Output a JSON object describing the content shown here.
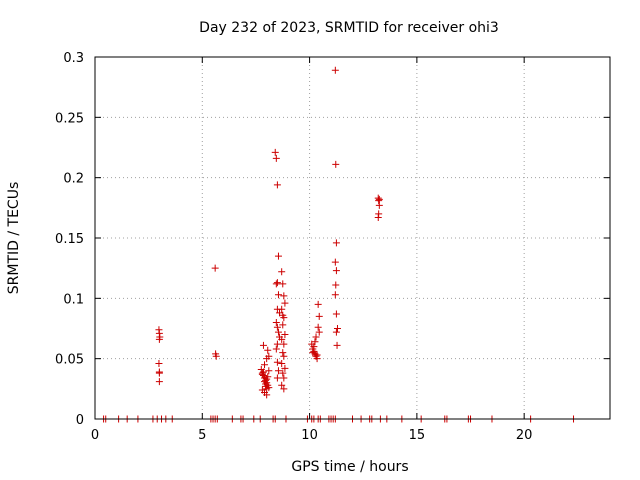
{
  "chart_data": {
    "type": "scatter",
    "title": "Day 232 of 2023, SRMTID for receiver ohi3",
    "xlabel": "GPS time / hours",
    "ylabel": "SRMTID / TECUs",
    "xlim": [
      0,
      24
    ],
    "ylim": [
      0,
      0.3
    ],
    "xticks": [
      0,
      5,
      10,
      15,
      20
    ],
    "yticks": [
      0,
      0.05,
      0.1,
      0.15,
      0.2,
      0.25,
      0.3
    ],
    "xtick_labels": [
      "0",
      "5",
      "10",
      "15",
      "20"
    ],
    "ytick_labels": [
      "0",
      "0.05",
      "0.1",
      "0.15",
      "0.2",
      "0.25",
      "0.3"
    ],
    "grid": true,
    "marker": "+",
    "color": "#cc0000",
    "series": [
      {
        "name": "SRMTID",
        "x": [
          0.4,
          0.5,
          1.1,
          1.5,
          2.0,
          2.7,
          2.9,
          3.1,
          3.3,
          3.6,
          5.4,
          5.5,
          5.6,
          5.7,
          6.4,
          6.8,
          6.9,
          7.4,
          7.7,
          8.3,
          8.4,
          8.9,
          9.9,
          10.1,
          10.2,
          10.4,
          10.5,
          10.9,
          11.0,
          11.1,
          11.2,
          12.0,
          12.4,
          12.8,
          12.9,
          13.3,
          13.6,
          14.3,
          15.2,
          16.3,
          16.4,
          17.4,
          17.5,
          18.5,
          20.3,
          22.3,
          2.98,
          3.0,
          3.0,
          2.98,
          3.0,
          3.0,
          3.0,
          3.02,
          5.6,
          5.62,
          5.65,
          7.75,
          7.8,
          7.85,
          7.9,
          7.95,
          8.0,
          8.05,
          8.1,
          7.8,
          7.9,
          8.0,
          8.05,
          7.85,
          7.95,
          8.1,
          8.0,
          7.9,
          8.05,
          7.85,
          8.0,
          7.95,
          8.1,
          7.8,
          7.9,
          8.0,
          8.4,
          8.45,
          8.5,
          8.55,
          8.5,
          8.45,
          8.55,
          8.5,
          8.6,
          8.45,
          8.5,
          8.55,
          8.6,
          8.5,
          8.45,
          8.5,
          8.55,
          8.5,
          8.7,
          8.75,
          8.8,
          8.85,
          8.7,
          8.8,
          8.75,
          8.85,
          8.7,
          8.8,
          8.75,
          8.8,
          8.7,
          8.85,
          8.75,
          8.8,
          8.7,
          8.8,
          8.75,
          10.1,
          10.15,
          10.2,
          10.25,
          10.3,
          10.35,
          10.2,
          10.25,
          10.3,
          10.15,
          10.35,
          10.4,
          10.45,
          10.4,
          10.45,
          11.2,
          11.22,
          11.25,
          11.2,
          11.25,
          11.22,
          11.2,
          11.25,
          11.3,
          11.25,
          11.28,
          13.2,
          13.22,
          13.25,
          13.22,
          13.2,
          13.25
        ],
        "y": [
          0,
          0,
          0,
          0,
          0,
          0,
          0,
          0,
          0,
          0,
          0,
          0,
          0,
          0,
          0,
          0,
          0,
          0,
          0,
          0,
          0,
          0,
          0,
          0,
          0,
          0,
          0,
          0,
          0,
          0,
          0,
          0,
          0,
          0,
          0,
          0,
          0,
          0,
          0,
          0,
          0,
          0,
          0,
          0,
          0,
          0,
          0.074,
          0.071,
          0.066,
          0.046,
          0.039,
          0.038,
          0.031,
          0.068,
          0.125,
          0.054,
          0.052,
          0.041,
          0.038,
          0.036,
          0.034,
          0.032,
          0.03,
          0.028,
          0.026,
          0.024,
          0.022,
          0.02,
          0.035,
          0.039,
          0.027,
          0.052,
          0.05,
          0.045,
          0.057,
          0.061,
          0.033,
          0.029,
          0.04,
          0.037,
          0.031,
          0.025,
          0.221,
          0.216,
          0.194,
          0.135,
          0.113,
          0.112,
          0.103,
          0.091,
          0.088,
          0.08,
          0.076,
          0.072,
          0.068,
          0.062,
          0.058,
          0.047,
          0.04,
          0.034,
          0.122,
          0.112,
          0.102,
          0.096,
          0.091,
          0.084,
          0.078,
          0.07,
          0.066,
          0.062,
          0.055,
          0.052,
          0.046,
          0.042,
          0.038,
          0.034,
          0.028,
          0.025,
          0.086,
          0.062,
          0.058,
          0.056,
          0.054,
          0.052,
          0.05,
          0.06,
          0.064,
          0.068,
          0.055,
          0.053,
          0.095,
          0.085,
          0.076,
          0.072,
          0.289,
          0.211,
          0.146,
          0.13,
          0.123,
          0.111,
          0.103,
          0.087,
          0.075,
          0.072,
          0.061,
          0.183,
          0.181,
          0.177,
          0.17,
          0.167,
          0.182
        ]
      }
    ]
  }
}
